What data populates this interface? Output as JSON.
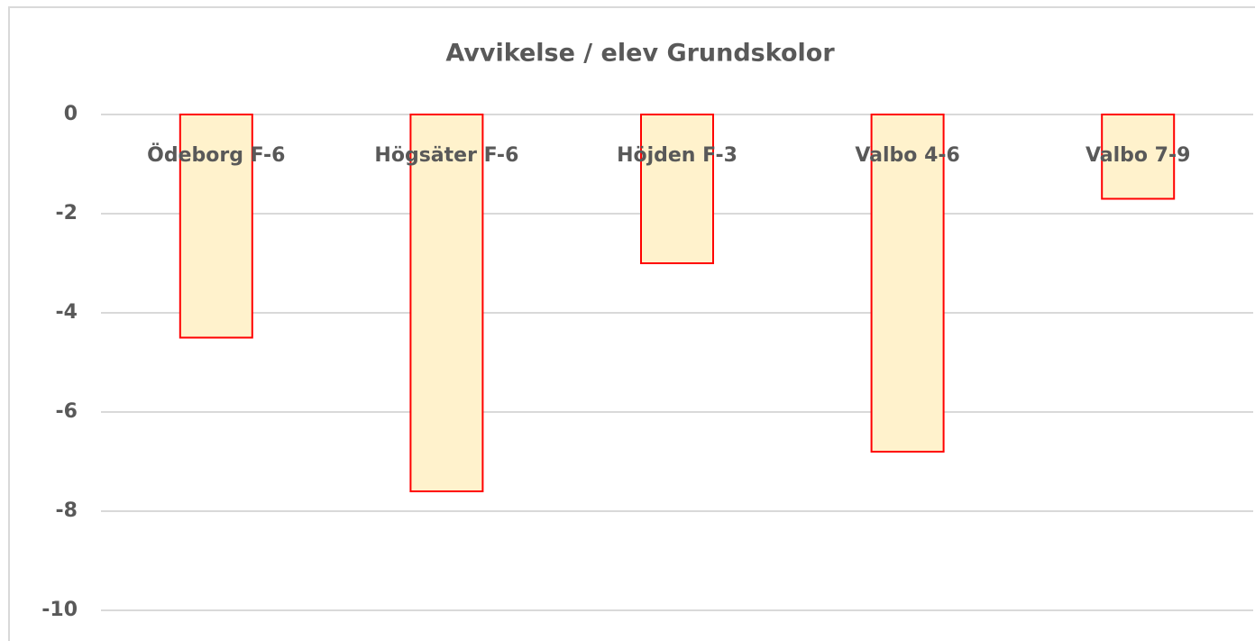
{
  "chart_data": {
    "type": "bar",
    "title": "Avvikelse / elev Grundskolor",
    "categories": [
      "Ödeborg F-6",
      "Högsäter F-6",
      "Höjden F-3",
      "Valbo 4-6",
      "Valbo 7-9"
    ],
    "values": [
      -4.5,
      -7.6,
      -3.0,
      -6.8,
      -1.7
    ],
    "color": "#fff2cc",
    "edge_color": "#ff0000",
    "ylim": [
      -10,
      0
    ],
    "yticks": [
      0,
      -2,
      -4,
      -6,
      -8,
      -10
    ],
    "grid": true
  }
}
